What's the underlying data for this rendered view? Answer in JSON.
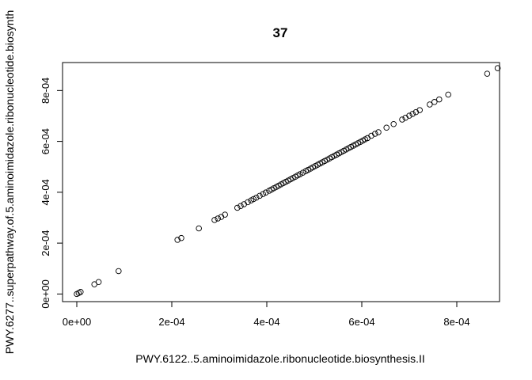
{
  "chart_data": {
    "type": "scatter",
    "title": "37",
    "xlabel": "PWY.6122..5.aminoimidazole.ribonucleotide.biosynthesis.II",
    "ylabel": "PWY.6277..superpathway.of.5.aminoimidazole.ribonucleotide.biosynth",
    "xlim": [
      -3e-05,
      0.00089
    ],
    "ylim": [
      -3e-05,
      0.00091
    ],
    "x_ticks": [
      {
        "value": 0.0,
        "label": "0e+00"
      },
      {
        "value": 0.0002,
        "label": "2e-04"
      },
      {
        "value": 0.0004,
        "label": "4e-04"
      },
      {
        "value": 0.0006,
        "label": "6e-04"
      },
      {
        "value": 0.0008,
        "label": "8e-04"
      }
    ],
    "y_ticks": [
      {
        "value": 0.0,
        "label": "0e+00"
      },
      {
        "value": 0.0002,
        "label": "2e-04"
      },
      {
        "value": 0.0004,
        "label": "4e-04"
      },
      {
        "value": 0.0006,
        "label": "6e-04"
      },
      {
        "value": 0.0008,
        "label": "8e-04"
      }
    ],
    "grid": false,
    "marker": "open-circle",
    "points": [
      [
        0.0,
        0.0
      ],
      [
        4e-06,
        4e-06
      ],
      [
        8e-06,
        8e-06
      ],
      [
        3.7e-05,
        3.8e-05
      ],
      [
        4.6e-05,
        4.7e-05
      ],
      [
        8.8e-05,
        9e-05
      ],
      [
        0.000212,
        0.000213
      ],
      [
        0.00022,
        0.00022
      ],
      [
        0.000257,
        0.000258
      ],
      [
        0.00029,
        0.000291
      ],
      [
        0.000297,
        0.000297
      ],
      [
        0.000304,
        0.000303
      ],
      [
        0.000312,
        0.000312
      ],
      [
        0.000338,
        0.000339
      ],
      [
        0.000345,
        0.000346
      ],
      [
        0.000352,
        0.000353
      ],
      [
        0.00036,
        0.000361
      ],
      [
        0.000367,
        0.000368
      ],
      [
        0.000372,
        0.000373
      ],
      [
        0.000378,
        0.000379
      ],
      [
        0.000385,
        0.000386
      ],
      [
        0.000392,
        0.000393
      ],
      [
        0.000398,
        0.000399
      ],
      [
        0.000405,
        0.000406
      ],
      [
        0.00041,
        0.000411
      ],
      [
        0.000415,
        0.000416
      ],
      [
        0.00042,
        0.000421
      ],
      [
        0.000425,
        0.000426
      ],
      [
        0.00043,
        0.000431
      ],
      [
        0.000435,
        0.000436
      ],
      [
        0.00044,
        0.000441
      ],
      [
        0.000445,
        0.000446
      ],
      [
        0.00045,
        0.000451
      ],
      [
        0.000455,
        0.000456
      ],
      [
        0.00046,
        0.000461
      ],
      [
        0.000465,
        0.000466
      ],
      [
        0.00047,
        0.000471
      ],
      [
        0.000476,
        0.000477
      ],
      [
        0.000482,
        0.000483
      ],
      [
        0.000487,
        0.000488
      ],
      [
        0.000492,
        0.000493
      ],
      [
        0.000497,
        0.000498
      ],
      [
        0.000502,
        0.000503
      ],
      [
        0.000507,
        0.000508
      ],
      [
        0.000512,
        0.000513
      ],
      [
        0.000517,
        0.000518
      ],
      [
        0.000522,
        0.000523
      ],
      [
        0.000527,
        0.000528
      ],
      [
        0.000532,
        0.000533
      ],
      [
        0.000537,
        0.000538
      ],
      [
        0.000542,
        0.000543
      ],
      [
        0.000547,
        0.000548
      ],
      [
        0.000552,
        0.000553
      ],
      [
        0.000557,
        0.000558
      ],
      [
        0.000562,
        0.000563
      ],
      [
        0.000567,
        0.000568
      ],
      [
        0.000572,
        0.000573
      ],
      [
        0.000577,
        0.000578
      ],
      [
        0.000582,
        0.000583
      ],
      [
        0.000587,
        0.000588
      ],
      [
        0.000592,
        0.000593
      ],
      [
        0.000597,
        0.000598
      ],
      [
        0.000602,
        0.000603
      ],
      [
        0.000607,
        0.000608
      ],
      [
        0.000612,
        0.000613
      ],
      [
        0.00062,
        0.000622
      ],
      [
        0.000628,
        0.00063
      ],
      [
        0.000635,
        0.000636
      ],
      [
        0.000652,
        0.000654
      ],
      [
        0.000667,
        0.000668
      ],
      [
        0.000685,
        0.000686
      ],
      [
        0.000692,
        0.000693
      ],
      [
        0.0007,
        0.000701
      ],
      [
        0.000707,
        0.000708
      ],
      [
        0.000714,
        0.000715
      ],
      [
        0.000722,
        0.000723
      ],
      [
        0.000743,
        0.000745
      ],
      [
        0.000753,
        0.000755
      ],
      [
        0.000763,
        0.000765
      ],
      [
        0.000782,
        0.000784
      ],
      [
        0.000864,
        0.000866
      ],
      [
        0.000886,
        0.000888
      ]
    ]
  }
}
